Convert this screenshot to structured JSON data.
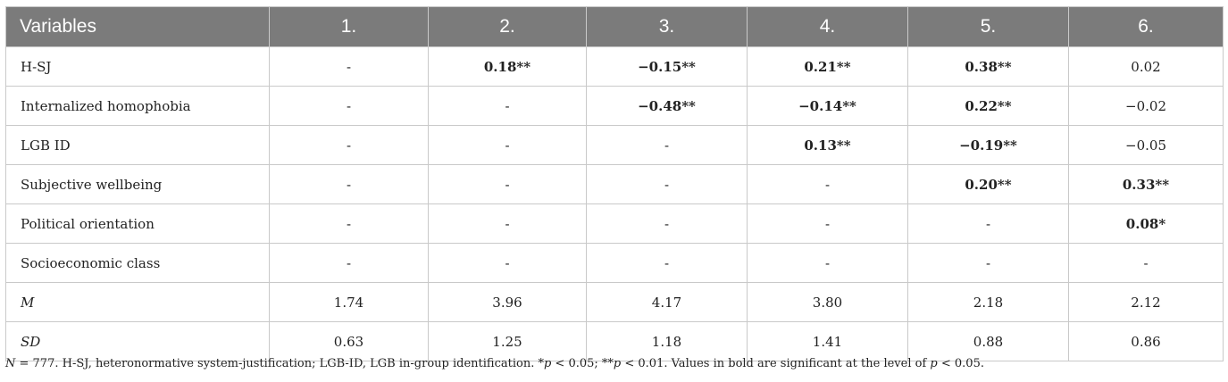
{
  "table": {
    "headers": [
      "Variables",
      "1.",
      "2.",
      "3.",
      "4.",
      "5.",
      "6."
    ],
    "rows": [
      {
        "label": "H-SJ",
        "cells": [
          {
            "v": "-",
            "bold": false
          },
          {
            "v": "0.18**",
            "bold": true
          },
          {
            "v": "−0.15**",
            "bold": true
          },
          {
            "v": "0.21**",
            "bold": true
          },
          {
            "v": "0.38**",
            "bold": true
          },
          {
            "v": "0.02",
            "bold": false
          }
        ]
      },
      {
        "label": "Internalized homophobia",
        "cells": [
          {
            "v": "-",
            "bold": false
          },
          {
            "v": "-",
            "bold": false
          },
          {
            "v": "−0.48**",
            "bold": true
          },
          {
            "v": "−0.14**",
            "bold": true
          },
          {
            "v": "0.22**",
            "bold": true
          },
          {
            "v": "−0.02",
            "bold": false
          }
        ]
      },
      {
        "label": "LGB ID",
        "cells": [
          {
            "v": "-",
            "bold": false
          },
          {
            "v": "-",
            "bold": false
          },
          {
            "v": "-",
            "bold": false
          },
          {
            "v": "0.13**",
            "bold": true
          },
          {
            "v": "−0.19**",
            "bold": true
          },
          {
            "v": "−0.05",
            "bold": false
          }
        ]
      },
      {
        "label": "Subjective wellbeing",
        "cells": [
          {
            "v": "-",
            "bold": false
          },
          {
            "v": "-",
            "bold": false
          },
          {
            "v": "-",
            "bold": false
          },
          {
            "v": "-",
            "bold": false
          },
          {
            "v": "0.20**",
            "bold": true
          },
          {
            "v": "0.33**",
            "bold": true
          }
        ]
      },
      {
        "label": "Political orientation",
        "cells": [
          {
            "v": "-",
            "bold": false
          },
          {
            "v": "-",
            "bold": false
          },
          {
            "v": "-",
            "bold": false
          },
          {
            "v": "-",
            "bold": false
          },
          {
            "v": "-",
            "bold": false
          },
          {
            "v": "0.08*",
            "bold": true
          }
        ]
      },
      {
        "label": "Socioeconomic class",
        "cells": [
          {
            "v": "-",
            "bold": false
          },
          {
            "v": "-",
            "bold": false
          },
          {
            "v": "-",
            "bold": false
          },
          {
            "v": "-",
            "bold": false
          },
          {
            "v": "-",
            "bold": false
          },
          {
            "v": "-",
            "bold": false
          }
        ]
      },
      {
        "label": "M",
        "italic_label": true,
        "cells": [
          {
            "v": "1.74",
            "bold": false
          },
          {
            "v": "3.96",
            "bold": false
          },
          {
            "v": "4.17",
            "bold": false
          },
          {
            "v": "3.80",
            "bold": false
          },
          {
            "v": "2.18",
            "bold": false
          },
          {
            "v": "2.12",
            "bold": false
          }
        ]
      },
      {
        "label": "SD",
        "italic_label": true,
        "cells": [
          {
            "v": "0.63",
            "bold": false
          },
          {
            "v": "1.25",
            "bold": false
          },
          {
            "v": "1.18",
            "bold": false
          },
          {
            "v": "1.41",
            "bold": false
          },
          {
            "v": "0.88",
            "bold": false
          },
          {
            "v": "0.86",
            "bold": false
          }
        ]
      }
    ]
  },
  "note": "N = 777. H-SJ, heteronormative system-justification; LGB-ID, LGB in-group identification. *p < 0.05; **p < 0.01. Values in bold are significant at the level of p < 0.05."
}
